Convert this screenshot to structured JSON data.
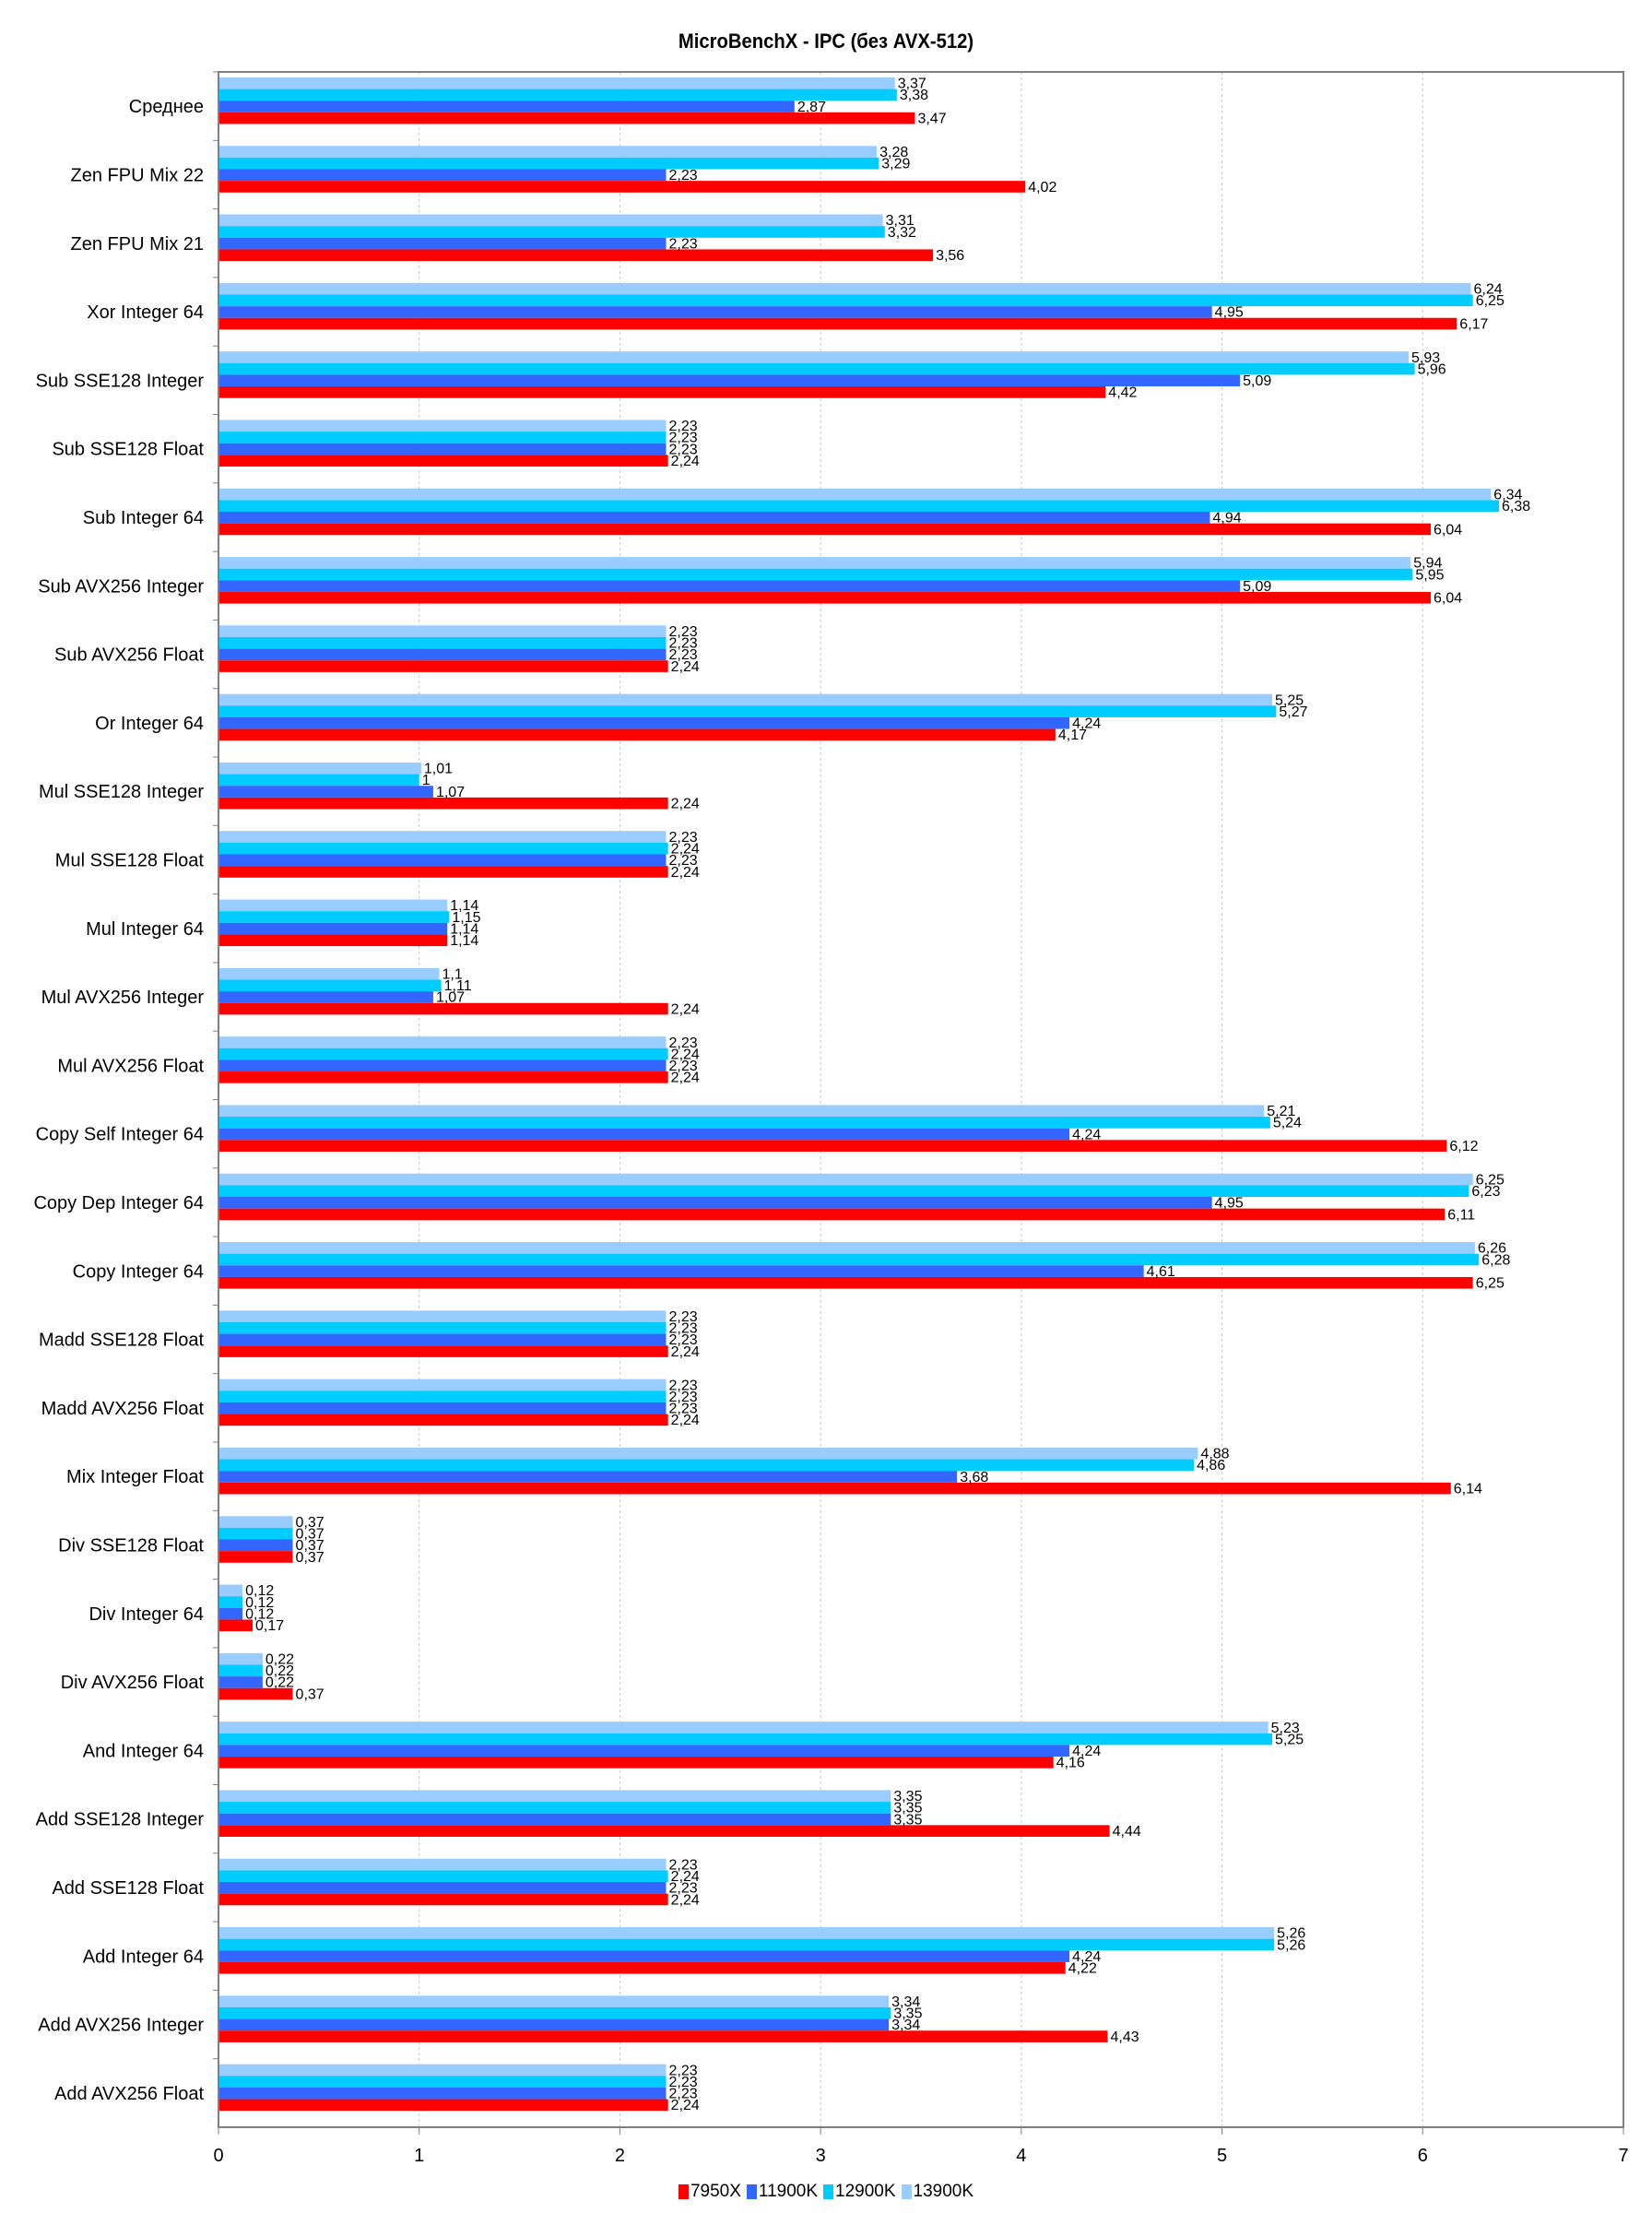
{
  "chart_data": {
    "type": "bar",
    "orientation": "horizontal",
    "title": "MicroBenchX - IPC (без AVX-512)",
    "xlabel": "",
    "ylabel": "",
    "xlim": [
      0,
      7
    ],
    "xticks": [
      "0",
      "1",
      "2",
      "3",
      "4",
      "5",
      "6",
      "7"
    ],
    "grid": true,
    "legend_position": "bottom",
    "decimal_separator": ",",
    "categories": [
      "Среднее",
      "Zen FPU Mix 22",
      "Zen FPU Mix 21",
      "Xor Integer 64",
      "Sub SSE128 Integer",
      "Sub SSE128 Float",
      "Sub Integer 64",
      "Sub AVX256 Integer",
      "Sub AVX256 Float",
      "Or Integer 64",
      "Mul SSE128 Integer",
      "Mul SSE128 Float",
      "Mul Integer 64",
      "Mul AVX256 Integer",
      "Mul AVX256 Float",
      "Copy Self Integer 64",
      "Copy Dep Integer 64",
      "Copy Integer 64",
      "Madd SSE128 Float",
      "Madd AVX256 Float",
      "Mix Integer Float",
      "Div SSE128 Float",
      "Div Integer 64",
      "Div AVX256 Float",
      "And Integer 64",
      "Add SSE128 Integer",
      "Add SSE128 Float",
      "Add Integer 64",
      "Add AVX256 Integer",
      "Add AVX256 Float"
    ],
    "series": [
      {
        "name": "13900K",
        "color": "#99CCFF",
        "values": [
          3.37,
          3.28,
          3.31,
          6.24,
          5.93,
          2.23,
          6.34,
          5.94,
          2.23,
          5.25,
          1.01,
          2.23,
          1.14,
          1.1,
          2.23,
          5.21,
          6.25,
          6.26,
          2.23,
          2.23,
          4.88,
          0.37,
          0.12,
          0.22,
          5.23,
          3.35,
          2.23,
          5.26,
          3.34,
          2.23
        ]
      },
      {
        "name": "12900K",
        "color": "#00CCFF",
        "values": [
          3.38,
          3.29,
          3.32,
          6.25,
          5.96,
          2.23,
          6.38,
          5.95,
          2.23,
          5.27,
          1,
          2.24,
          1.15,
          1.11,
          2.24,
          5.24,
          6.23,
          6.28,
          2.23,
          2.23,
          4.86,
          0.37,
          0.12,
          0.22,
          5.25,
          3.35,
          2.24,
          5.26,
          3.35,
          2.23
        ]
      },
      {
        "name": "11900K",
        "color": "#3366FF",
        "values": [
          2.87,
          2.23,
          2.23,
          4.95,
          5.09,
          2.23,
          4.94,
          5.09,
          2.23,
          4.24,
          1.07,
          2.23,
          1.14,
          1.07,
          2.23,
          4.24,
          4.95,
          4.61,
          2.23,
          2.23,
          3.68,
          0.37,
          0.12,
          0.22,
          4.24,
          3.35,
          2.23,
          4.24,
          3.34,
          2.23
        ]
      },
      {
        "name": "7950X",
        "color": "#FF0000",
        "values": [
          3.47,
          4.02,
          3.56,
          6.17,
          4.42,
          2.24,
          6.04,
          6.04,
          2.24,
          4.17,
          2.24,
          2.24,
          1.14,
          2.24,
          2.24,
          6.12,
          6.11,
          6.25,
          2.24,
          2.24,
          6.14,
          0.37,
          0.17,
          0.37,
          4.16,
          4.44,
          2.24,
          4.22,
          4.43,
          2.24
        ]
      }
    ],
    "legend": [
      "7950X",
      "11900K",
      "12900K",
      "13900K"
    ]
  }
}
